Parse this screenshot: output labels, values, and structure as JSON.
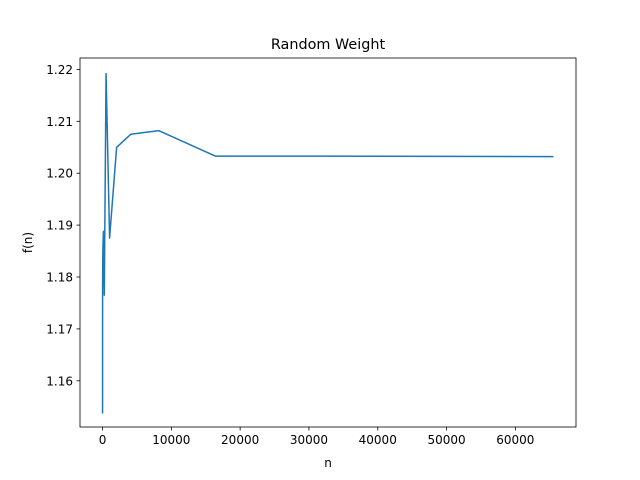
{
  "chart_data": {
    "type": "line",
    "title": "Random Weight",
    "xlabel": "n",
    "ylabel": "f(n)",
    "xlim": [
      -3275,
      68811
    ],
    "ylim": [
      1.1511,
      1.2222
    ],
    "xticks": [
      0,
      10000,
      20000,
      30000,
      40000,
      50000,
      60000
    ],
    "xtick_labels": [
      "0",
      "10000",
      "20000",
      "30000",
      "40000",
      "50000",
      "60000"
    ],
    "yticks": [
      1.16,
      1.17,
      1.18,
      1.19,
      1.2,
      1.21,
      1.22
    ],
    "ytick_labels": [
      "1.16",
      "1.17",
      "1.18",
      "1.19",
      "1.20",
      "1.21",
      "1.22"
    ],
    "grid": false,
    "legend": "none",
    "series": [
      {
        "color": "#1f77b4",
        "x": [
          2,
          4,
          8,
          16,
          32,
          64,
          128,
          256,
          512,
          1024,
          2048,
          4096,
          8192,
          16384,
          32768,
          65536
        ],
        "y": [
          1.1537,
          1.17,
          1.175,
          1.179,
          1.183,
          1.186,
          1.1888,
          1.1765,
          1.2192,
          1.1875,
          1.205,
          1.2075,
          1.2082,
          1.2033,
          1.2033,
          1.2032
        ]
      }
    ]
  }
}
